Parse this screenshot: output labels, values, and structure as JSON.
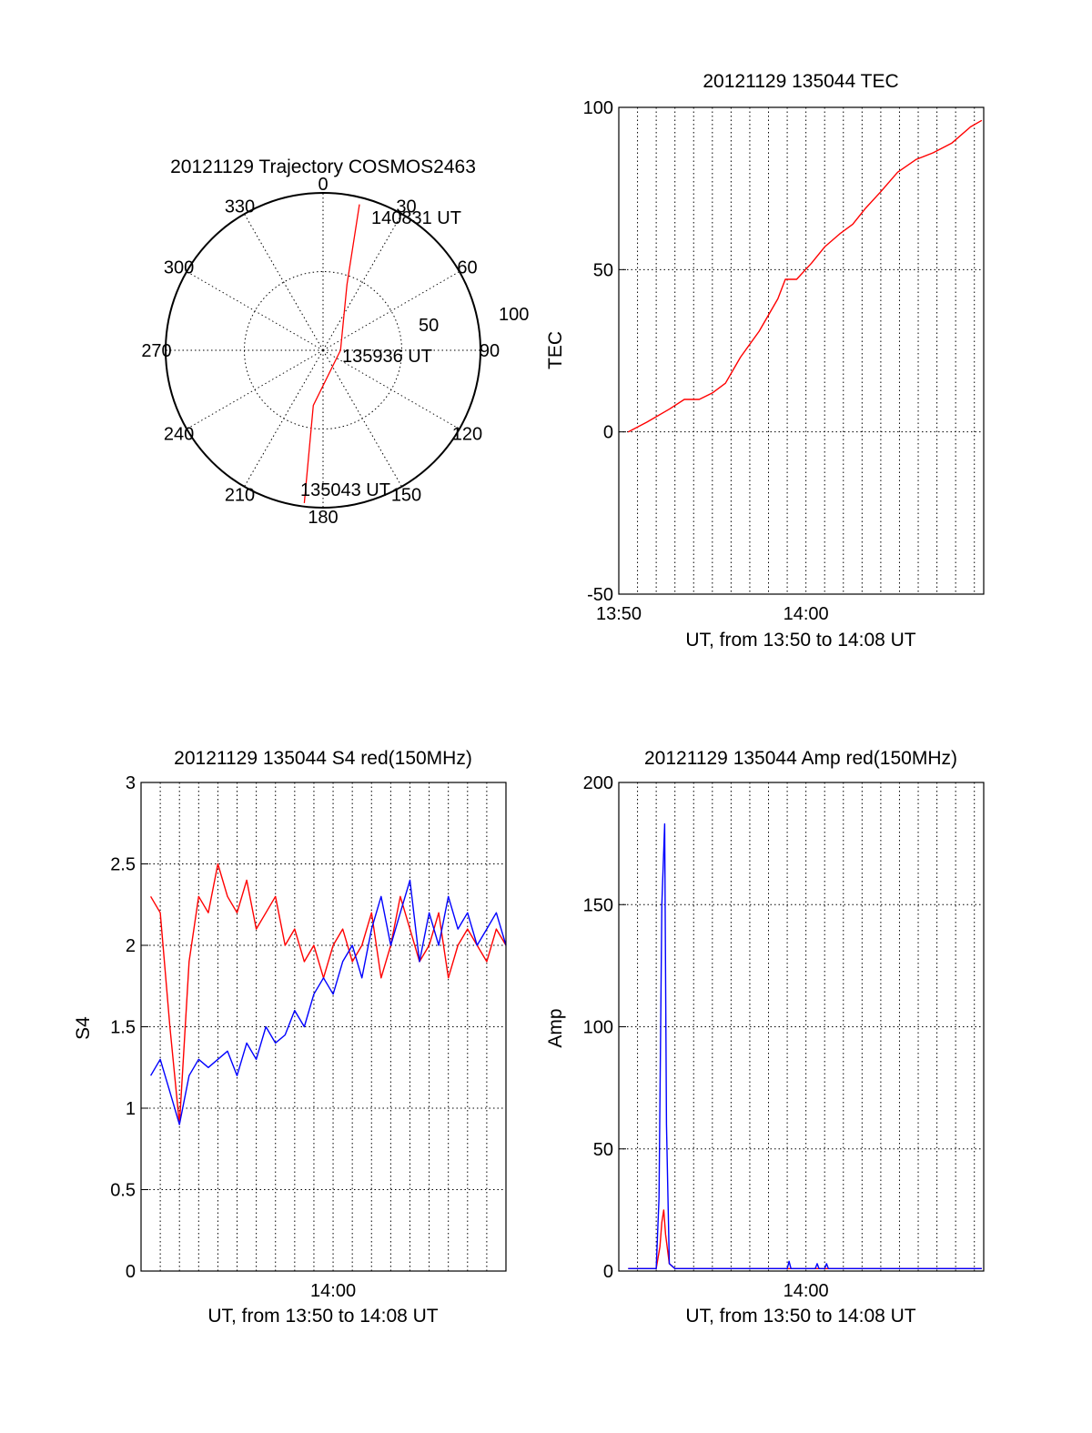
{
  "chart_data": [
    {
      "type": "polar",
      "title": "20121129 Trajectory COSMOS2463",
      "angle_ticks": [
        "0",
        "30",
        "60",
        "90",
        "120",
        "150",
        "180",
        "210",
        "240",
        "270",
        "300",
        "330"
      ],
      "radial_ticks": [
        "50",
        "100"
      ],
      "rmax": 90,
      "series": [
        {
          "color": "#ff0000",
          "points": [
            {
              "az": 14,
              "r": 86
            },
            {
              "az": 20,
              "r": 40
            },
            {
              "az": 90,
              "r": 10
            },
            {
              "az": 190,
              "r": 32
            },
            {
              "az": 187,
              "r": 88
            }
          ]
        }
      ],
      "annotations": [
        {
          "text": "140831 UT",
          "az": 15,
          "r": 85
        },
        {
          "text": "135936 UT",
          "az": 90,
          "r": 10
        },
        {
          "text": "135043 UT",
          "az": 187,
          "r": 90
        }
      ]
    },
    {
      "type": "line",
      "title": "20121129 135044 TEC",
      "xlabel": "UT, from 13:50 to 14:08 UT",
      "ylabel": "TEC",
      "xlim": [
        0,
        19.5
      ],
      "ylim": [
        -50,
        100
      ],
      "x_ticks": [
        {
          "x": 0,
          "label": "13:50"
        },
        {
          "x": 10,
          "label": "14:00"
        }
      ],
      "y_ticks": [
        "-50",
        "0",
        "50",
        "100"
      ],
      "series": [
        {
          "color": "#ff0000",
          "x": [
            0.5,
            1.5,
            2.7,
            3.5,
            4.3,
            5.0,
            5.7,
            6.5,
            7.5,
            8.5,
            8.9,
            9.5,
            10.3,
            11.0,
            11.8,
            12.5,
            13.2,
            14.0,
            14.9,
            15.9,
            16.8,
            17.8,
            18.8,
            19.4
          ],
          "y": [
            0,
            3,
            7,
            10,
            10,
            12,
            15,
            23,
            31,
            41,
            47,
            47,
            52,
            57,
            61,
            64,
            69,
            74,
            80,
            84,
            86,
            89,
            94,
            96
          ]
        }
      ]
    },
    {
      "type": "line",
      "title": "20121129 135044 S4 red(150MHz)",
      "xlabel": "UT, from 13:50 to 14:08 UT",
      "ylabel": "S4",
      "xlim": [
        0,
        19.0
      ],
      "ylim": [
        0,
        3
      ],
      "x_ticks": [
        {
          "x": 10,
          "label": "14:00"
        }
      ],
      "y_ticks": [
        "0",
        "0.5",
        "1",
        "1.5",
        "2",
        "2.5",
        "3"
      ],
      "series": [
        {
          "color": "#ff0000",
          "x": [
            0.5,
            1.0,
            1.5,
            2.0,
            2.5,
            3.0,
            3.5,
            4.0,
            4.5,
            5.0,
            5.5,
            6.0,
            6.5,
            7.0,
            7.5,
            8.0,
            8.5,
            9.0,
            9.5,
            10.0,
            10.5,
            11.0,
            11.5,
            12.0,
            12.5,
            13.0,
            13.5,
            14.0,
            14.5,
            15.0,
            15.5,
            16.0,
            16.5,
            17.0,
            17.5,
            18.0,
            18.5,
            19.0
          ],
          "y": [
            2.3,
            2.2,
            1.5,
            0.9,
            1.9,
            2.3,
            2.2,
            2.5,
            2.3,
            2.2,
            2.4,
            2.1,
            2.2,
            2.3,
            2.0,
            2.1,
            1.9,
            2.0,
            1.8,
            2.0,
            2.1,
            1.9,
            2.0,
            2.2,
            1.8,
            2.0,
            2.3,
            2.1,
            1.9,
            2.0,
            2.2,
            1.8,
            2.0,
            2.1,
            2.0,
            1.9,
            2.1,
            2.0
          ]
        },
        {
          "color": "#0000ff",
          "x": [
            0.5,
            1.0,
            1.5,
            2.0,
            2.5,
            3.0,
            3.5,
            4.0,
            4.5,
            5.0,
            5.5,
            6.0,
            6.5,
            7.0,
            7.5,
            8.0,
            8.5,
            9.0,
            9.5,
            10.0,
            10.5,
            11.0,
            11.5,
            12.0,
            12.5,
            13.0,
            13.5,
            14.0,
            14.5,
            15.0,
            15.5,
            16.0,
            16.5,
            17.0,
            17.5,
            18.0,
            18.5,
            19.0
          ],
          "y": [
            1.2,
            1.3,
            1.1,
            0.9,
            1.2,
            1.3,
            1.25,
            1.3,
            1.35,
            1.2,
            1.4,
            1.3,
            1.5,
            1.4,
            1.45,
            1.6,
            1.5,
            1.7,
            1.8,
            1.7,
            1.9,
            2.0,
            1.8,
            2.1,
            2.3,
            2.0,
            2.2,
            2.4,
            1.9,
            2.2,
            2.0,
            2.3,
            2.1,
            2.2,
            2.0,
            2.1,
            2.2,
            2.0
          ]
        }
      ]
    },
    {
      "type": "line",
      "title": "20121129 135044 Amp red(150MHz)",
      "xlabel": "UT, from 13:50 to 14:08 UT",
      "ylabel": "Amp",
      "xlim": [
        0,
        19.5
      ],
      "ylim": [
        0,
        200
      ],
      "x_ticks": [
        {
          "x": 10,
          "label": "14:00"
        }
      ],
      "y_ticks": [
        "0",
        "50",
        "100",
        "150",
        "200"
      ],
      "series": [
        {
          "color": "#ff0000",
          "x": [
            0.5,
            2.0,
            2.2,
            2.3,
            2.4,
            2.5,
            2.7,
            3.0,
            19.4
          ],
          "y": [
            1,
            1,
            10,
            20,
            25,
            15,
            3,
            1,
            1
          ]
        },
        {
          "color": "#0000ff",
          "x": [
            0.5,
            2.0,
            2.15,
            2.3,
            2.45,
            2.55,
            2.7,
            3.0,
            9.0,
            9.1,
            9.2,
            10.5,
            10.6,
            10.7,
            11.0,
            11.1,
            11.2,
            19.4
          ],
          "y": [
            1,
            1,
            30,
            150,
            183,
            60,
            3,
            1,
            1,
            4,
            1,
            1,
            3,
            1,
            1,
            3,
            1,
            1
          ]
        }
      ]
    }
  ]
}
